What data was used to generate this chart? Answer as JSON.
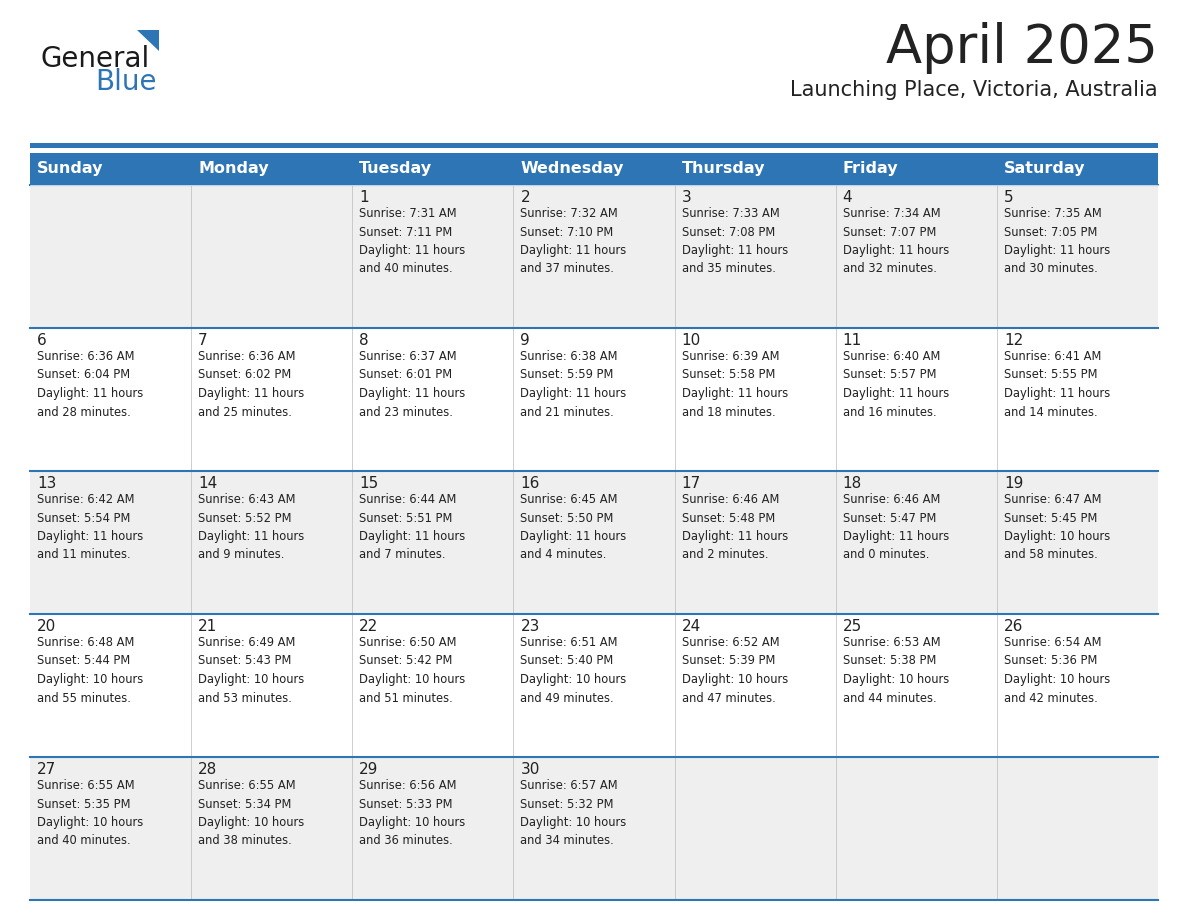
{
  "title": "April 2025",
  "subtitle": "Launching Place, Victoria, Australia",
  "header_bg": "#2E75B6",
  "header_text_color": "#FFFFFF",
  "cell_bg_odd": "#EFEFEF",
  "cell_bg_even": "#FFFFFF",
  "day_headers": [
    "Sunday",
    "Monday",
    "Tuesday",
    "Wednesday",
    "Thursday",
    "Friday",
    "Saturday"
  ],
  "days": [
    {
      "day": null,
      "info": null
    },
    {
      "day": null,
      "info": null
    },
    {
      "day": "1",
      "info": "Sunrise: 7:31 AM\nSunset: 7:11 PM\nDaylight: 11 hours\nand 40 minutes."
    },
    {
      "day": "2",
      "info": "Sunrise: 7:32 AM\nSunset: 7:10 PM\nDaylight: 11 hours\nand 37 minutes."
    },
    {
      "day": "3",
      "info": "Sunrise: 7:33 AM\nSunset: 7:08 PM\nDaylight: 11 hours\nand 35 minutes."
    },
    {
      "day": "4",
      "info": "Sunrise: 7:34 AM\nSunset: 7:07 PM\nDaylight: 11 hours\nand 32 minutes."
    },
    {
      "day": "5",
      "info": "Sunrise: 7:35 AM\nSunset: 7:05 PM\nDaylight: 11 hours\nand 30 minutes."
    },
    {
      "day": "6",
      "info": "Sunrise: 6:36 AM\nSunset: 6:04 PM\nDaylight: 11 hours\nand 28 minutes."
    },
    {
      "day": "7",
      "info": "Sunrise: 6:36 AM\nSunset: 6:02 PM\nDaylight: 11 hours\nand 25 minutes."
    },
    {
      "day": "8",
      "info": "Sunrise: 6:37 AM\nSunset: 6:01 PM\nDaylight: 11 hours\nand 23 minutes."
    },
    {
      "day": "9",
      "info": "Sunrise: 6:38 AM\nSunset: 5:59 PM\nDaylight: 11 hours\nand 21 minutes."
    },
    {
      "day": "10",
      "info": "Sunrise: 6:39 AM\nSunset: 5:58 PM\nDaylight: 11 hours\nand 18 minutes."
    },
    {
      "day": "11",
      "info": "Sunrise: 6:40 AM\nSunset: 5:57 PM\nDaylight: 11 hours\nand 16 minutes."
    },
    {
      "day": "12",
      "info": "Sunrise: 6:41 AM\nSunset: 5:55 PM\nDaylight: 11 hours\nand 14 minutes."
    },
    {
      "day": "13",
      "info": "Sunrise: 6:42 AM\nSunset: 5:54 PM\nDaylight: 11 hours\nand 11 minutes."
    },
    {
      "day": "14",
      "info": "Sunrise: 6:43 AM\nSunset: 5:52 PM\nDaylight: 11 hours\nand 9 minutes."
    },
    {
      "day": "15",
      "info": "Sunrise: 6:44 AM\nSunset: 5:51 PM\nDaylight: 11 hours\nand 7 minutes."
    },
    {
      "day": "16",
      "info": "Sunrise: 6:45 AM\nSunset: 5:50 PM\nDaylight: 11 hours\nand 4 minutes."
    },
    {
      "day": "17",
      "info": "Sunrise: 6:46 AM\nSunset: 5:48 PM\nDaylight: 11 hours\nand 2 minutes."
    },
    {
      "day": "18",
      "info": "Sunrise: 6:46 AM\nSunset: 5:47 PM\nDaylight: 11 hours\nand 0 minutes."
    },
    {
      "day": "19",
      "info": "Sunrise: 6:47 AM\nSunset: 5:45 PM\nDaylight: 10 hours\nand 58 minutes."
    },
    {
      "day": "20",
      "info": "Sunrise: 6:48 AM\nSunset: 5:44 PM\nDaylight: 10 hours\nand 55 minutes."
    },
    {
      "day": "21",
      "info": "Sunrise: 6:49 AM\nSunset: 5:43 PM\nDaylight: 10 hours\nand 53 minutes."
    },
    {
      "day": "22",
      "info": "Sunrise: 6:50 AM\nSunset: 5:42 PM\nDaylight: 10 hours\nand 51 minutes."
    },
    {
      "day": "23",
      "info": "Sunrise: 6:51 AM\nSunset: 5:40 PM\nDaylight: 10 hours\nand 49 minutes."
    },
    {
      "day": "24",
      "info": "Sunrise: 6:52 AM\nSunset: 5:39 PM\nDaylight: 10 hours\nand 47 minutes."
    },
    {
      "day": "25",
      "info": "Sunrise: 6:53 AM\nSunset: 5:38 PM\nDaylight: 10 hours\nand 44 minutes."
    },
    {
      "day": "26",
      "info": "Sunrise: 6:54 AM\nSunset: 5:36 PM\nDaylight: 10 hours\nand 42 minutes."
    },
    {
      "day": "27",
      "info": "Sunrise: 6:55 AM\nSunset: 5:35 PM\nDaylight: 10 hours\nand 40 minutes."
    },
    {
      "day": "28",
      "info": "Sunrise: 6:55 AM\nSunset: 5:34 PM\nDaylight: 10 hours\nand 38 minutes."
    },
    {
      "day": "29",
      "info": "Sunrise: 6:56 AM\nSunset: 5:33 PM\nDaylight: 10 hours\nand 36 minutes."
    },
    {
      "day": "30",
      "info": "Sunrise: 6:57 AM\nSunset: 5:32 PM\nDaylight: 10 hours\nand 34 minutes."
    },
    {
      "day": null,
      "info": null
    },
    {
      "day": null,
      "info": null
    },
    {
      "day": null,
      "info": null
    }
  ],
  "num_weeks": 5,
  "num_cols": 7,
  "header_bg_color": "#2E75B6",
  "divider_color": "#2E75B6",
  "row_line_color": "#2E75B6",
  "text_color": "#222222",
  "logo_general_color": "#1a1a1a",
  "logo_blue_color": "#2E75B6",
  "logo_triangle_color": "#2E75B6"
}
